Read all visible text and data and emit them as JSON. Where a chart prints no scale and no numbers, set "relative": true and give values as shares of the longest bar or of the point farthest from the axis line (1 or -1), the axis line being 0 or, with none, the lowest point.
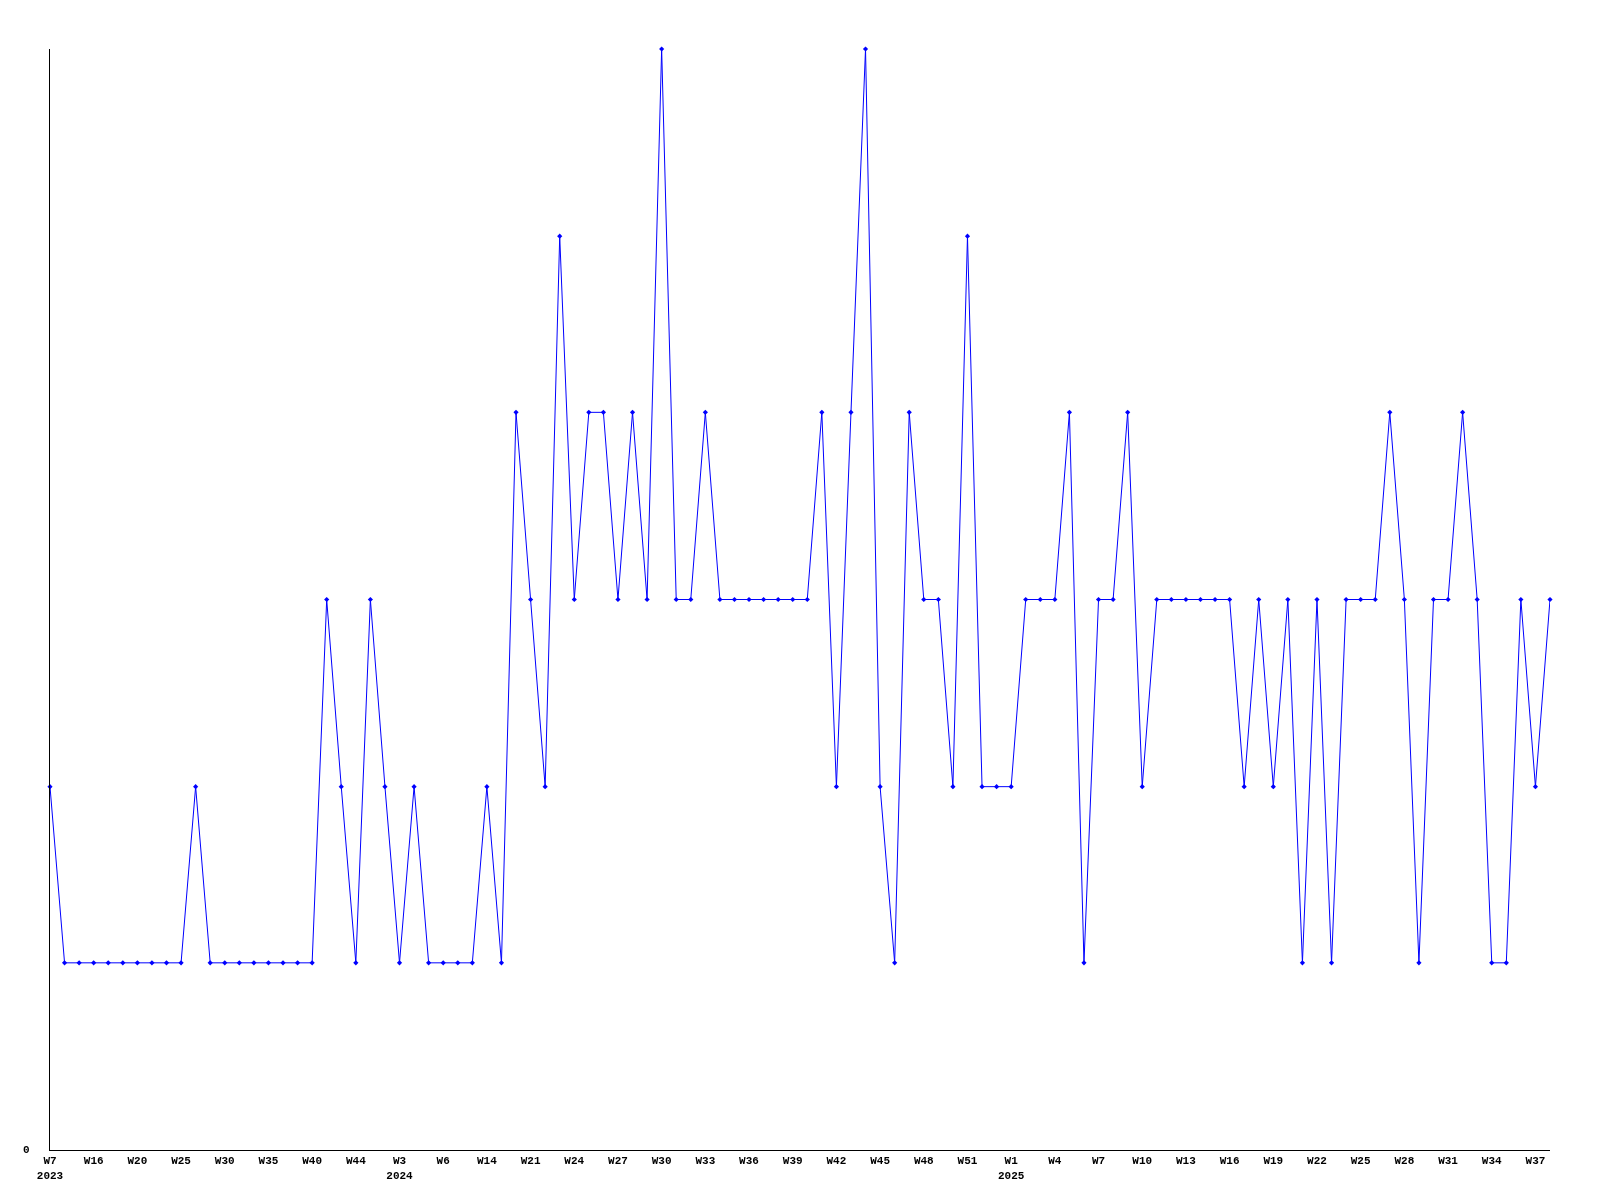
{
  "chart_data": {
    "type": "line",
    "relative": true,
    "color": "#0000ff",
    "marker": "diamond",
    "line_style": "solid",
    "legend": false,
    "categories": [
      "W7\n2023",
      null,
      null,
      "W16",
      null,
      null,
      "W20",
      null,
      null,
      "W25",
      null,
      null,
      "W30",
      null,
      null,
      "W35",
      null,
      null,
      "W40",
      null,
      null,
      "W44",
      null,
      null,
      "W3\n2024",
      null,
      null,
      "W6",
      null,
      null,
      "W14",
      null,
      null,
      "W21",
      null,
      null,
      "W24",
      null,
      null,
      "W27",
      null,
      null,
      "W30",
      null,
      null,
      "W33",
      null,
      null,
      "W36",
      null,
      null,
      "W39",
      null,
      null,
      "W42",
      null,
      null,
      "W45",
      null,
      null,
      "W48",
      null,
      null,
      "W51",
      null,
      null,
      "W1\n2025",
      null,
      null,
      "W4",
      null,
      null,
      "W7",
      null,
      null,
      "W10",
      null,
      null,
      "W13",
      null,
      null,
      "W16",
      null,
      null,
      "W19",
      null,
      null,
      "W22",
      null,
      null,
      "W25",
      null,
      null,
      "W28",
      null,
      null,
      "W31",
      null,
      null,
      "W34",
      null,
      null,
      "W37",
      null
    ],
    "values": [
      0.33,
      0.17,
      0.17,
      0.17,
      0.17,
      0.17,
      0.17,
      0.17,
      0.17,
      0.17,
      0.33,
      0.17,
      0.17,
      0.17,
      0.17,
      0.17,
      0.17,
      0.17,
      0.17,
      0.5,
      0.33,
      0.17,
      0.5,
      0.33,
      0.17,
      0.33,
      0.17,
      0.17,
      0.17,
      0.17,
      0.33,
      0.17,
      0.67,
      0.5,
      0.33,
      0.83,
      0.5,
      0.67,
      0.67,
      0.5,
      0.67,
      0.5,
      1,
      0.5,
      0.5,
      0.67,
      0.5,
      0.5,
      0.5,
      0.5,
      0.5,
      0.5,
      0.5,
      0.67,
      0.33,
      0.67,
      1,
      0.33,
      0.17,
      0.67,
      0.5,
      0.5,
      0.33,
      0.83,
      0.33,
      0.33,
      0.33,
      0.5,
      0.5,
      0.5,
      0.67,
      0.17,
      0.5,
      0.5,
      0.67,
      0.33,
      0.5,
      0.5,
      0.5,
      0.5,
      0.5,
      0.5,
      0.33,
      0.5,
      0.33,
      0.5,
      0.17,
      0.5,
      0.17,
      0.5,
      0.5,
      0.5,
      0.67,
      0.5,
      0.17,
      0.5,
      0.5,
      0.67,
      0.5,
      0.17,
      0.17,
      0.5,
      0.33,
      0.5
    ],
    "annotations": [
      "0"
    ]
  }
}
